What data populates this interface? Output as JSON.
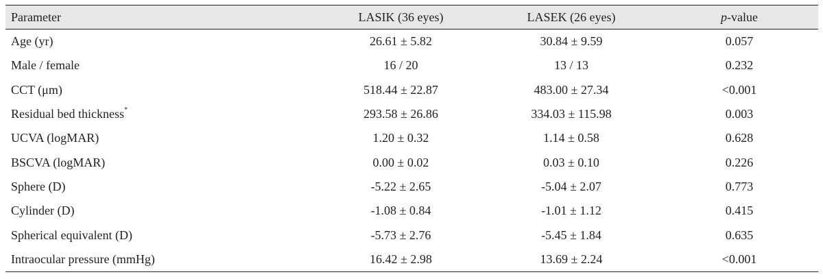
{
  "table": {
    "headers": {
      "parameter": "Parameter",
      "lasik": "LASIK (36 eyes)",
      "lasek": "LASEK (26 eyes)",
      "p_italic": "p",
      "p_rest": "-value"
    },
    "rows": [
      {
        "parameter": "Age (yr)",
        "sup": "",
        "lasik": "26.61 ± 5.82",
        "lasek": "30.84 ± 9.59",
        "p": "0.057"
      },
      {
        "parameter": "Male / female",
        "sup": "",
        "lasik": "16 / 20",
        "lasek": "13 / 13",
        "p": "0.232"
      },
      {
        "parameter": "CCT (μm)",
        "sup": "",
        "lasik": "518.44 ± 22.87",
        "lasek": "483.00 ± 27.34",
        "p": "<0.001"
      },
      {
        "parameter": "Residual bed thickness",
        "sup": "*",
        "lasik": "293.58 ± 26.86",
        "lasek": "334.03 ± 115.98",
        "p": "0.003"
      },
      {
        "parameter": "UCVA (logMAR)",
        "sup": "",
        "lasik": "1.20 ± 0.32",
        "lasek": "1.14 ± 0.58",
        "p": "0.628"
      },
      {
        "parameter": "BSCVA (logMAR)",
        "sup": "",
        "lasik": "0.00 ± 0.02",
        "lasek": "0.03 ± 0.10",
        "p": "0.226"
      },
      {
        "parameter": "Sphere (D)",
        "sup": "",
        "lasik": "-5.22 ± 2.65",
        "lasek": "-5.04 ± 2.07",
        "p": "0.773"
      },
      {
        "parameter": "Cylinder (D)",
        "sup": "",
        "lasik": "-1.08 ± 0.84",
        "lasek": "-1.01 ± 1.12",
        "p": "0.415"
      },
      {
        "parameter": "Spherical equivalent (D)",
        "sup": "",
        "lasik": "-5.73 ± 2.76",
        "lasek": "-5.45 ± 1.84",
        "p": "0.635"
      },
      {
        "parameter": "Intraocular pressure (mmHg)",
        "sup": "",
        "lasik": "16.42 ± 2.98",
        "lasek": "13.69 ± 2.24",
        "p": "<0.001"
      }
    ]
  }
}
